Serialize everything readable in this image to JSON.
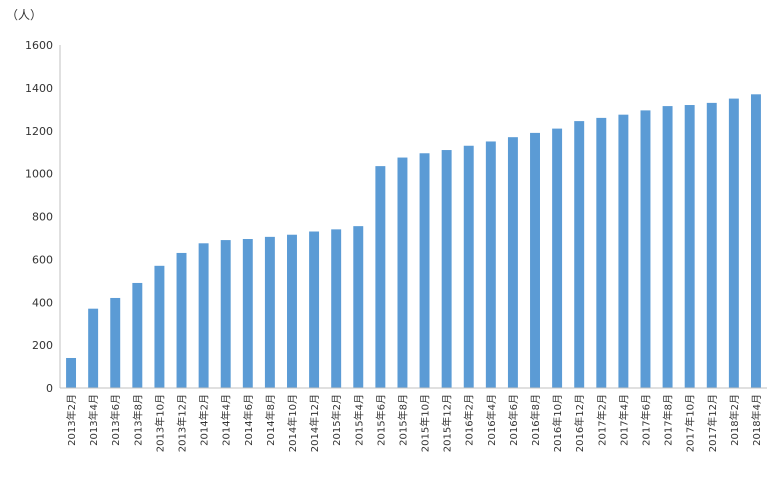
{
  "chart_data": {
    "type": "bar",
    "unit_label": "（人）",
    "categories": [
      "2013年2月",
      "2013年4月",
      "2013年6月",
      "2013年8月",
      "2013年10月",
      "2013年12月",
      "2014年2月",
      "2014年4月",
      "2014年6月",
      "2014年8月",
      "2014年10月",
      "2014年12月",
      "2015年2月",
      "2015年4月",
      "2015年6月",
      "2015年8月",
      "2015年10月",
      "2015年12月",
      "2016年2月",
      "2016年4月",
      "2016年6月",
      "2016年8月",
      "2016年10月",
      "2016年12月",
      "2017年2月",
      "2017年4月",
      "2017年6月",
      "2017年8月",
      "2017年10月",
      "2017年12月",
      "2018年2月",
      "2018年4月"
    ],
    "values": [
      140,
      370,
      420,
      490,
      570,
      630,
      675,
      690,
      695,
      705,
      715,
      730,
      740,
      755,
      1035,
      1075,
      1095,
      1110,
      1130,
      1150,
      1170,
      1190,
      1210,
      1245,
      1260,
      1275,
      1295,
      1315,
      1320,
      1330,
      1350,
      1370
    ],
    "ylim": [
      0,
      1600
    ],
    "yticks": [
      0,
      200,
      400,
      600,
      800,
      1000,
      1200,
      1400,
      1600
    ],
    "grid": false,
    "bar_color": "#5B9BD5",
    "axis_color": "#C0C0C0"
  }
}
